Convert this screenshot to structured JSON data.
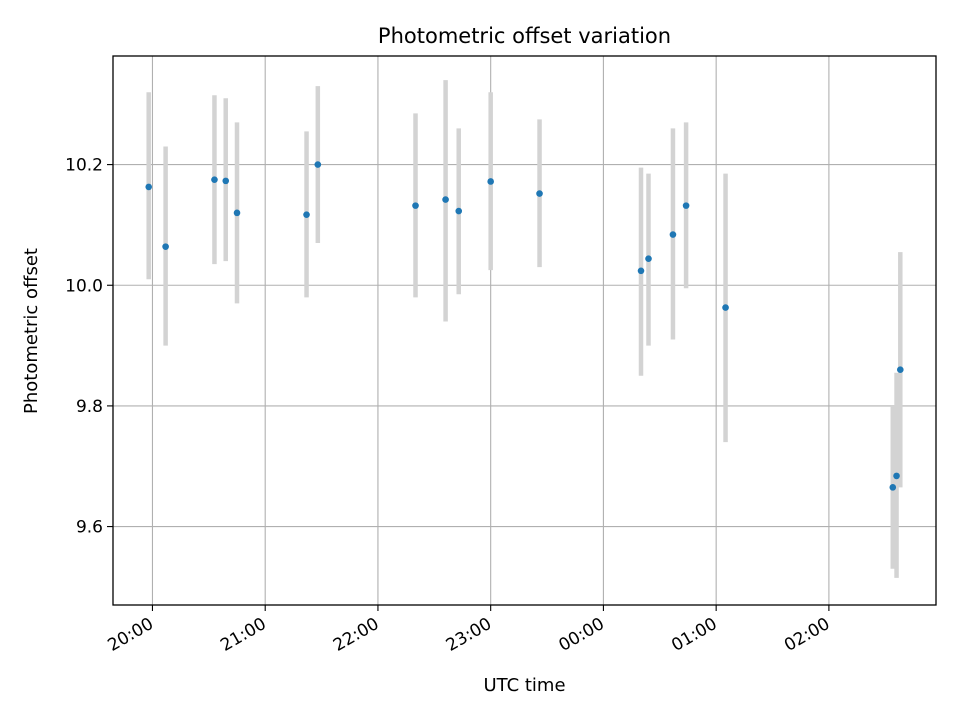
{
  "chart_data": {
    "type": "scatter",
    "title": "Photometric offset variation",
    "xlabel": "UTC time",
    "ylabel": "Photometric offset",
    "xlim": [
      "19:39",
      "02:57"
    ],
    "ylim": [
      9.47,
      10.38
    ],
    "grid": true,
    "x_ticks": [
      "20:00",
      "21:00",
      "22:00",
      "23:00",
      "00:00",
      "01:00",
      "02:00"
    ],
    "y_ticks": [
      "9.6",
      "9.8",
      "10.0",
      "10.2"
    ],
    "colors": {
      "marker": "#1f77b4",
      "error_bar": "#d3d3d3",
      "grid": "#b0b0b0"
    },
    "points": [
      {
        "t": "19:58",
        "y": 10.163,
        "lo": 10.01,
        "hi": 10.32
      },
      {
        "t": "20:07",
        "y": 10.064,
        "lo": 9.9,
        "hi": 10.23
      },
      {
        "t": "20:33",
        "y": 10.175,
        "lo": 10.035,
        "hi": 10.315
      },
      {
        "t": "20:39",
        "y": 10.173,
        "lo": 10.04,
        "hi": 10.31
      },
      {
        "t": "20:45",
        "y": 10.12,
        "lo": 9.97,
        "hi": 10.27
      },
      {
        "t": "21:22",
        "y": 10.117,
        "lo": 9.98,
        "hi": 10.255
      },
      {
        "t": "21:28",
        "y": 10.2,
        "lo": 10.07,
        "hi": 10.33
      },
      {
        "t": "22:20",
        "y": 10.132,
        "lo": 9.98,
        "hi": 10.285
      },
      {
        "t": "22:36",
        "y": 10.142,
        "lo": 9.94,
        "hi": 10.34
      },
      {
        "t": "22:43",
        "y": 10.123,
        "lo": 9.985,
        "hi": 10.26
      },
      {
        "t": "23:00",
        "y": 10.172,
        "lo": 10.025,
        "hi": 10.32
      },
      {
        "t": "23:26",
        "y": 10.152,
        "lo": 10.03,
        "hi": 10.275
      },
      {
        "t": "00:20",
        "y": 10.024,
        "lo": 9.85,
        "hi": 10.195
      },
      {
        "t": "00:24",
        "y": 10.044,
        "lo": 9.9,
        "hi": 10.185
      },
      {
        "t": "00:37",
        "y": 10.084,
        "lo": 9.91,
        "hi": 10.26
      },
      {
        "t": "00:44",
        "y": 10.132,
        "lo": 9.995,
        "hi": 10.27
      },
      {
        "t": "01:05",
        "y": 9.963,
        "lo": 9.74,
        "hi": 10.185
      },
      {
        "t": "02:34",
        "y": 9.665,
        "lo": 9.53,
        "hi": 9.8
      },
      {
        "t": "02:36",
        "y": 9.684,
        "lo": 9.515,
        "hi": 9.855
      },
      {
        "t": "02:38",
        "y": 9.86,
        "lo": 9.665,
        "hi": 10.055
      }
    ]
  }
}
